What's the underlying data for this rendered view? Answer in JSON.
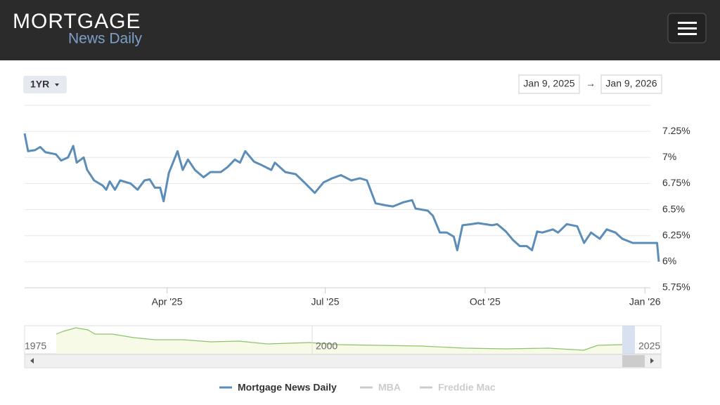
{
  "header": {
    "logo_title": "MORTGAGE",
    "logo_subtitle": "News Daily"
  },
  "controls": {
    "range_button": "1YR",
    "date_from": "Jan 9, 2025",
    "range_arrow": "→",
    "date_to": "Jan 9, 2026"
  },
  "chart_data": {
    "type": "line",
    "x": [
      "2025-01-09",
      "2025-01-11",
      "2025-01-15",
      "2025-01-18",
      "2025-01-21",
      "2025-01-27",
      "2025-01-30",
      "2025-02-03",
      "2025-02-06",
      "2025-02-08",
      "2025-02-12",
      "2025-02-14",
      "2025-02-18",
      "2025-02-23",
      "2025-02-25",
      "2025-02-27",
      "2025-03-02",
      "2025-03-05",
      "2025-03-11",
      "2025-03-15",
      "2025-03-19",
      "2025-03-22",
      "2025-03-25",
      "2025-03-28",
      "2025-03-30",
      "2025-04-02",
      "2025-04-07",
      "2025-04-10",
      "2025-04-13",
      "2025-04-17",
      "2025-04-22",
      "2025-04-26",
      "2025-05-02",
      "2025-05-06",
      "2025-05-10",
      "2025-05-13",
      "2025-05-16",
      "2025-05-21",
      "2025-05-25",
      "2025-05-31",
      "2025-06-02",
      "2025-06-08",
      "2025-06-14",
      "2025-06-19",
      "2025-06-25",
      "2025-06-30",
      "2025-07-05",
      "2025-07-10",
      "2025-07-16",
      "2025-07-21",
      "2025-07-25",
      "2025-07-30",
      "2025-08-05",
      "2025-08-09",
      "2025-08-15",
      "2025-08-20",
      "2025-08-22",
      "2025-08-29",
      "2025-09-01",
      "2025-09-05",
      "2025-09-09",
      "2025-09-13",
      "2025-09-15",
      "2025-09-18",
      "2025-09-23",
      "2025-09-27",
      "2025-10-05",
      "2025-10-08",
      "2025-10-13",
      "2025-10-17",
      "2025-10-21",
      "2025-10-25",
      "2025-10-28",
      "2025-10-31",
      "2025-11-03",
      "2025-11-09",
      "2025-11-12",
      "2025-11-17",
      "2025-11-23",
      "2025-11-27",
      "2025-12-01",
      "2025-12-06",
      "2025-12-10",
      "2025-12-15",
      "2025-12-19",
      "2025-12-25",
      "2026-01-02",
      "2026-01-08",
      "2026-01-09"
    ],
    "series": [
      {
        "name": "Mortgage News Daily",
        "color": "#5b8db8",
        "values": [
          7.23,
          7.06,
          7.07,
          7.1,
          7.05,
          7.03,
          6.97,
          7.0,
          7.11,
          6.95,
          7.0,
          6.88,
          6.78,
          6.73,
          6.69,
          6.77,
          6.69,
          6.78,
          6.75,
          6.69,
          6.78,
          6.79,
          6.71,
          6.71,
          6.58,
          6.85,
          7.06,
          6.88,
          6.98,
          6.88,
          6.81,
          6.86,
          6.86,
          6.91,
          6.98,
          6.95,
          7.06,
          6.96,
          6.93,
          6.88,
          6.95,
          6.86,
          6.84,
          6.76,
          6.66,
          6.76,
          6.8,
          6.83,
          6.78,
          6.8,
          6.78,
          6.56,
          6.54,
          6.53,
          6.57,
          6.59,
          6.51,
          6.49,
          6.44,
          6.28,
          6.28,
          6.24,
          6.11,
          6.35,
          6.36,
          6.37,
          6.35,
          6.36,
          6.29,
          6.21,
          6.15,
          6.15,
          6.11,
          6.29,
          6.28,
          6.31,
          6.28,
          6.36,
          6.34,
          6.18,
          6.28,
          6.22,
          6.31,
          6.28,
          6.22,
          6.18,
          6.18,
          6.18,
          6.0
        ]
      },
      {
        "name": "MBA",
        "color": "#cccccc",
        "visible": false
      },
      {
        "name": "Freddie Mac",
        "color": "#cccccc",
        "visible": false
      }
    ],
    "xlim": [
      "2025-01-09",
      "2026-01-09"
    ],
    "xticks": [
      {
        "value": "2025-04-01",
        "label": "Apr '25"
      },
      {
        "value": "2025-07-01",
        "label": "Jul '25"
      },
      {
        "value": "2025-10-01",
        "label": "Oct '25"
      },
      {
        "value": "2026-01-01",
        "label": "Jan '26"
      }
    ],
    "ylim": [
      5.75,
      7.5
    ],
    "yticks": [
      {
        "value": 5.75,
        "label": "5.75%"
      },
      {
        "value": 6,
        "label": "6%"
      },
      {
        "value": 6.25,
        "label": "6.25%"
      },
      {
        "value": 6.5,
        "label": "6.5%"
      },
      {
        "value": 6.75,
        "label": "6.75%"
      },
      {
        "value": 7,
        "label": "7%"
      },
      {
        "value": 7.25,
        "label": "7.25%"
      }
    ],
    "grid": true,
    "legend": "bottom",
    "navigator_labels": [
      1975,
      2000,
      2025
    ]
  }
}
